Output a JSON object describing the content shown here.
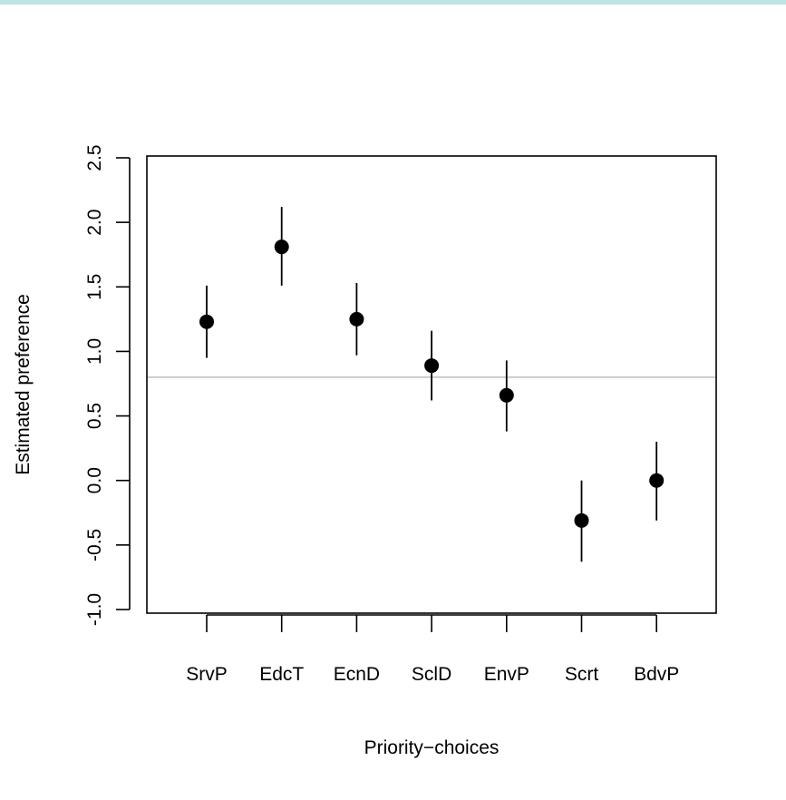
{
  "chart_data": {
    "type": "scatter",
    "title": "",
    "xlabel": "Priority−choices",
    "ylabel": "Estimated preference",
    "categories": [
      "SrvP",
      "EdcT",
      "EcnD",
      "SclD",
      "EnvP",
      "Scrt",
      "BdvP"
    ],
    "series": [
      {
        "values": [
          1.23,
          1.81,
          1.25,
          0.89,
          0.66,
          -0.31,
          0.0
        ],
        "lower": [
          0.95,
          1.51,
          0.97,
          0.62,
          0.38,
          -0.63,
          -0.31
        ],
        "upper": [
          1.51,
          2.12,
          1.53,
          1.16,
          0.93,
          0.0,
          0.3
        ]
      }
    ],
    "reference_line": 0.8,
    "ylim": [
      -1.0,
      2.5
    ],
    "yticks": [
      "-1.0",
      "-0.5",
      "0.0",
      "0.5",
      "1.0",
      "1.5",
      "2.0",
      "2.5"
    ],
    "grid": false,
    "legend": "none",
    "colors": {
      "points": "#000000",
      "reference_line": "#bdbdbd",
      "top_bar": "#bfe3e6"
    }
  }
}
